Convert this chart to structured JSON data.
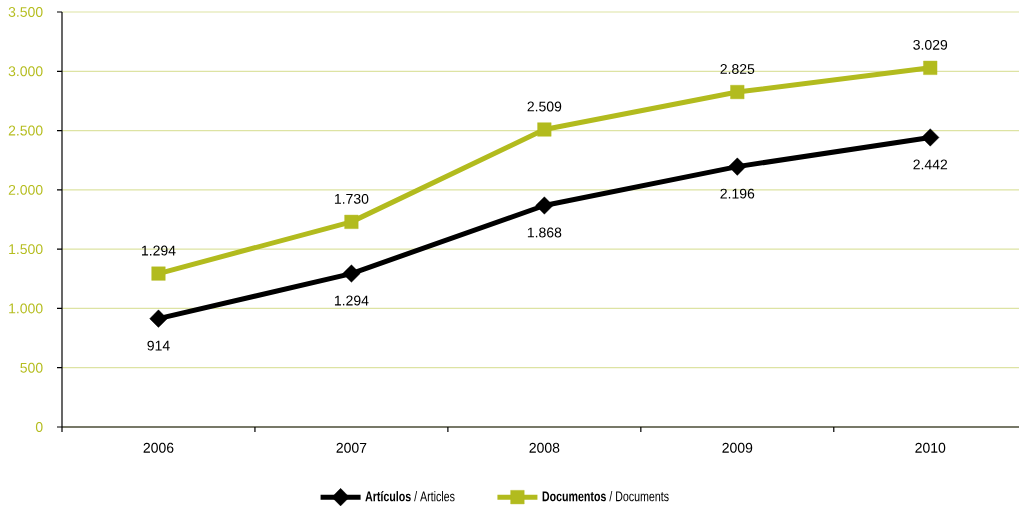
{
  "chart_data": {
    "type": "line",
    "categories": [
      "2006",
      "2007",
      "2008",
      "2009",
      "2010"
    ],
    "series": [
      {
        "name": "**Artículos** / Articles",
        "color": "#000000",
        "marker": "diamond",
        "values": [
          914,
          1294,
          1868,
          2196,
          2442
        ],
        "value_labels": [
          "914",
          "1.294",
          "1.868",
          "2.196",
          "2.442"
        ]
      },
      {
        "name": "**Documentos** / Documents",
        "color": "#b2bb1e",
        "marker": "square",
        "values": [
          1294,
          1730,
          2509,
          2825,
          3029
        ],
        "value_labels": [
          "1.294",
          "1.730",
          "2.509",
          "2.825",
          "3.029"
        ]
      }
    ],
    "ylim": [
      0,
      3500
    ],
    "yticks": [
      0,
      500,
      {
        "value": 1000,
        "label": "1.000"
      },
      {
        "value": 1500,
        "label": "1.500"
      },
      {
        "value": 2000,
        "label": "2.000"
      },
      {
        "value": 2500,
        "label": "2.500"
      },
      {
        "value": 3000,
        "label": "3.000"
      },
      {
        "value": 3500,
        "label": "3.500"
      }
    ],
    "grid": "y",
    "legend": "bottom",
    "line_style": "solid"
  }
}
